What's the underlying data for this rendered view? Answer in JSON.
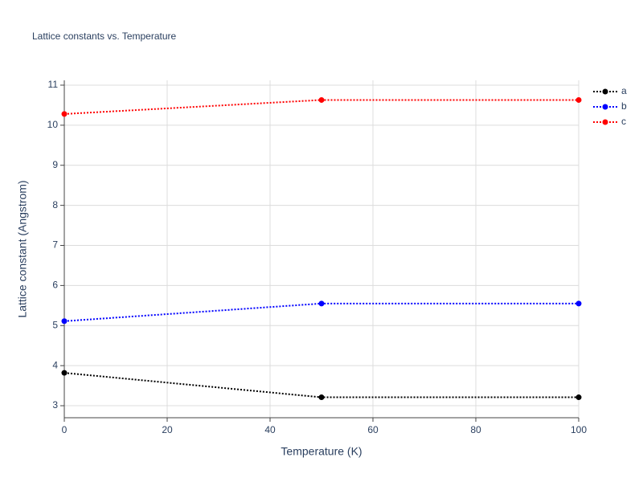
{
  "chart_data": {
    "type": "line",
    "title": "Lattice constants vs. Temperature",
    "xlabel": "Temperature (K)",
    "ylabel": "Lattice constant (Angstrom)",
    "x": [
      0,
      50,
      100
    ],
    "series": [
      {
        "name": "a",
        "color": "#000000",
        "values": [
          3.82,
          3.21,
          3.21
        ]
      },
      {
        "name": "b",
        "color": "#0000ff",
        "values": [
          5.11,
          5.55,
          5.55
        ]
      },
      {
        "name": "c",
        "color": "#ff0000",
        "values": [
          10.28,
          10.63,
          10.63
        ]
      }
    ],
    "xlim": [
      0,
      100
    ],
    "xticks": [
      0,
      20,
      40,
      60,
      80,
      100
    ],
    "ylim": [
      2.7,
      11.12
    ],
    "yticks": [
      3,
      4,
      5,
      6,
      7,
      8,
      9,
      10,
      11
    ],
    "grid": true,
    "legend": "top-right"
  }
}
